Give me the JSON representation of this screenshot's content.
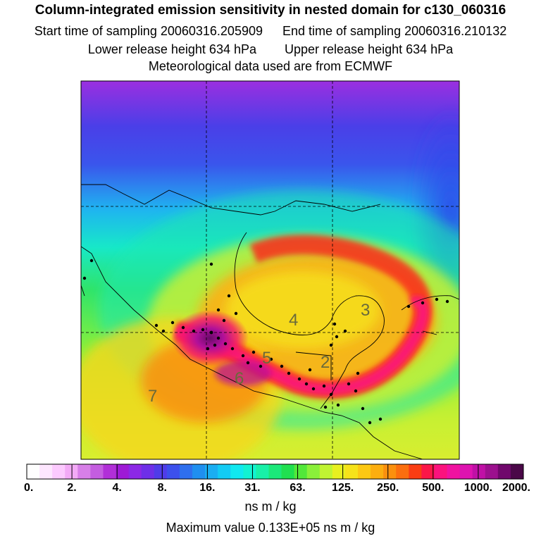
{
  "header": {
    "title": "Column-integrated emission sensitivity in nested domain for c130_060316",
    "start_label": "Start time of sampling 20060316.205909",
    "end_label": "End time of sampling 20060316.210132",
    "lower_label": "Lower release height  634 hPa",
    "upper_label": "Upper release height  634 hPa",
    "met_label": "Meteorological data used are from ECMWF"
  },
  "map": {
    "region_labels": [
      "3",
      "4",
      "5",
      "2",
      "6",
      "7"
    ],
    "gridlines": "dashed"
  },
  "colorbar": {
    "colors": [
      "#fefefe",
      "#fde6fe",
      "#fccafe",
      "#f3aaf6",
      "#d77fe8",
      "#c45de0",
      "#b12fd8",
      "#9e1ad6",
      "#8c28e6",
      "#6e2fe8",
      "#4f3ce9",
      "#3c50ec",
      "#2e6fee",
      "#1f8ff0",
      "#1aaef2",
      "#13cbf4",
      "#10e8f0",
      "#12f2d2",
      "#18f0a8",
      "#1be87a",
      "#20e050",
      "#52e83a",
      "#8af03a",
      "#c0f432",
      "#e8f020",
      "#f6e21a",
      "#fcc814",
      "#fcae10",
      "#fb900e",
      "#fb6e0f",
      "#fa3d14",
      "#fb1648",
      "#fb127e",
      "#f012a0",
      "#de14b0",
      "#c010a6",
      "#9c108e",
      "#70086c",
      "#4a0848"
    ],
    "tick_labels": [
      "0.",
      "2.",
      "4.",
      "8.",
      "16.",
      "31.",
      "63.",
      "125.",
      "250.",
      "500.",
      "1000.",
      "2000."
    ],
    "units": "ns m / kg"
  },
  "footer": {
    "max_value": "Maximum value  0.133E+05 ns m / kg"
  }
}
